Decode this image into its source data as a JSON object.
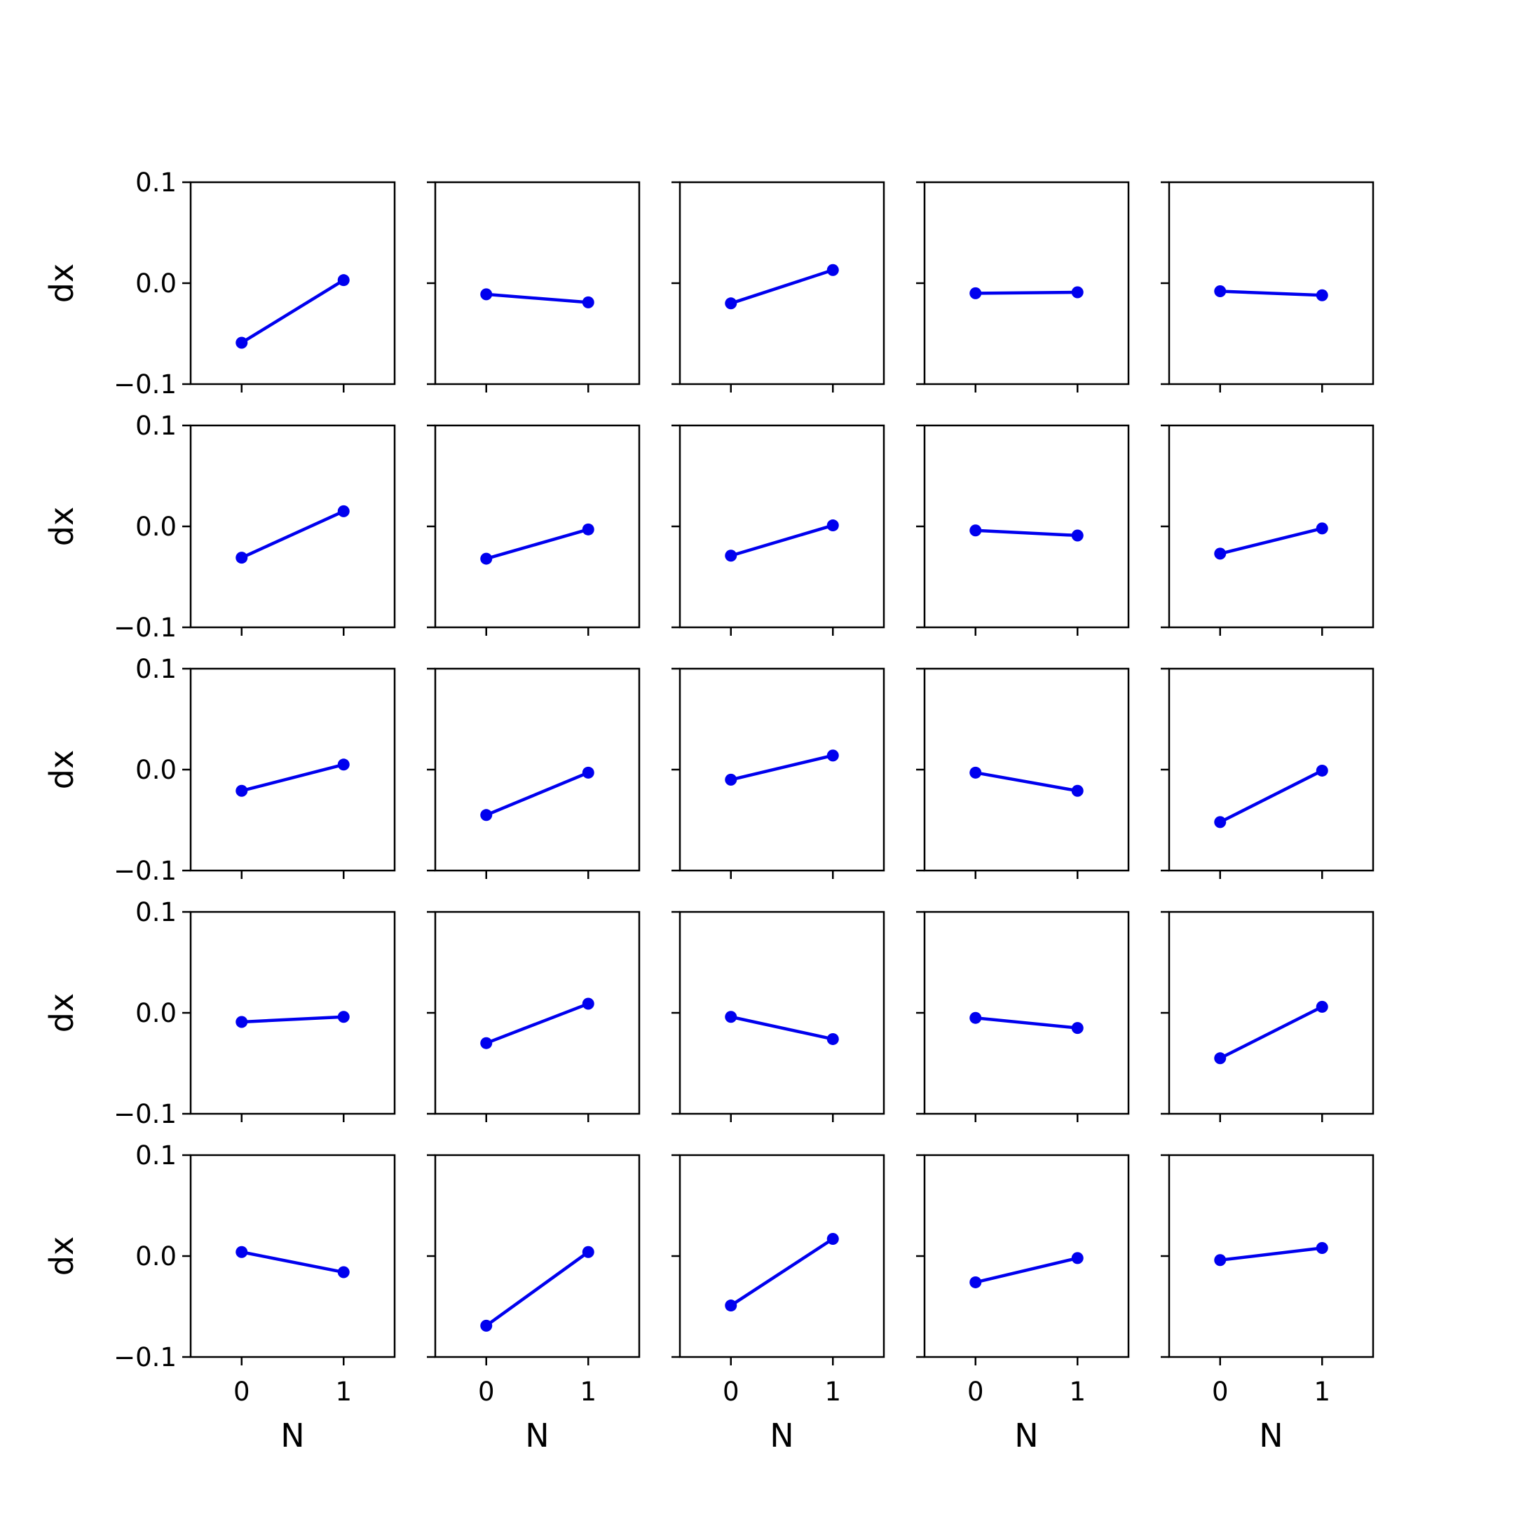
{
  "chart_data": {
    "type": "line",
    "layout": "grid",
    "rows": 5,
    "cols": 5,
    "xlabel": "N",
    "ylabel": "dx",
    "xticks": [
      0,
      1
    ],
    "yticks": [
      -0.1,
      0.0,
      0.1
    ],
    "ytick_labels": [
      "−0.1",
      "0.0",
      "0.1"
    ],
    "xlim": [
      -0.5,
      1.5
    ],
    "ylim": [
      -0.1,
      0.1
    ],
    "grid": false,
    "line_color": "#0000ee",
    "marker": "circle",
    "panels": [
      {
        "x": [
          0,
          1
        ],
        "y": [
          -0.059,
          0.003
        ]
      },
      {
        "x": [
          0,
          1
        ],
        "y": [
          -0.011,
          -0.019
        ]
      },
      {
        "x": [
          0,
          1
        ],
        "y": [
          -0.02,
          0.013
        ]
      },
      {
        "x": [
          0,
          1
        ],
        "y": [
          -0.01,
          -0.009
        ]
      },
      {
        "x": [
          0,
          1
        ],
        "y": [
          -0.008,
          -0.012
        ]
      },
      {
        "x": [
          0,
          1
        ],
        "y": [
          -0.031,
          0.015
        ]
      },
      {
        "x": [
          0,
          1
        ],
        "y": [
          -0.032,
          -0.003
        ]
      },
      {
        "x": [
          0,
          1
        ],
        "y": [
          -0.029,
          0.001
        ]
      },
      {
        "x": [
          0,
          1
        ],
        "y": [
          -0.004,
          -0.009
        ]
      },
      {
        "x": [
          0,
          1
        ],
        "y": [
          -0.027,
          -0.002
        ]
      },
      {
        "x": [
          0,
          1
        ],
        "y": [
          -0.021,
          0.005
        ]
      },
      {
        "x": [
          0,
          1
        ],
        "y": [
          -0.045,
          -0.003
        ]
      },
      {
        "x": [
          0,
          1
        ],
        "y": [
          -0.01,
          0.014
        ]
      },
      {
        "x": [
          0,
          1
        ],
        "y": [
          -0.003,
          -0.021
        ]
      },
      {
        "x": [
          0,
          1
        ],
        "y": [
          -0.052,
          -0.001
        ]
      },
      {
        "x": [
          0,
          1
        ],
        "y": [
          -0.009,
          -0.004
        ]
      },
      {
        "x": [
          0,
          1
        ],
        "y": [
          -0.03,
          0.009
        ]
      },
      {
        "x": [
          0,
          1
        ],
        "y": [
          -0.004,
          -0.026
        ]
      },
      {
        "x": [
          0,
          1
        ],
        "y": [
          -0.005,
          -0.015
        ]
      },
      {
        "x": [
          0,
          1
        ],
        "y": [
          -0.045,
          0.006
        ]
      },
      {
        "x": [
          0,
          1
        ],
        "y": [
          0.004,
          -0.016
        ]
      },
      {
        "x": [
          0,
          1
        ],
        "y": [
          -0.069,
          0.004
        ]
      },
      {
        "x": [
          0,
          1
        ],
        "y": [
          -0.049,
          0.017
        ]
      },
      {
        "x": [
          0,
          1
        ],
        "y": [
          -0.026,
          -0.002
        ]
      },
      {
        "x": [
          0,
          1
        ],
        "y": [
          -0.004,
          0.008
        ]
      }
    ]
  }
}
